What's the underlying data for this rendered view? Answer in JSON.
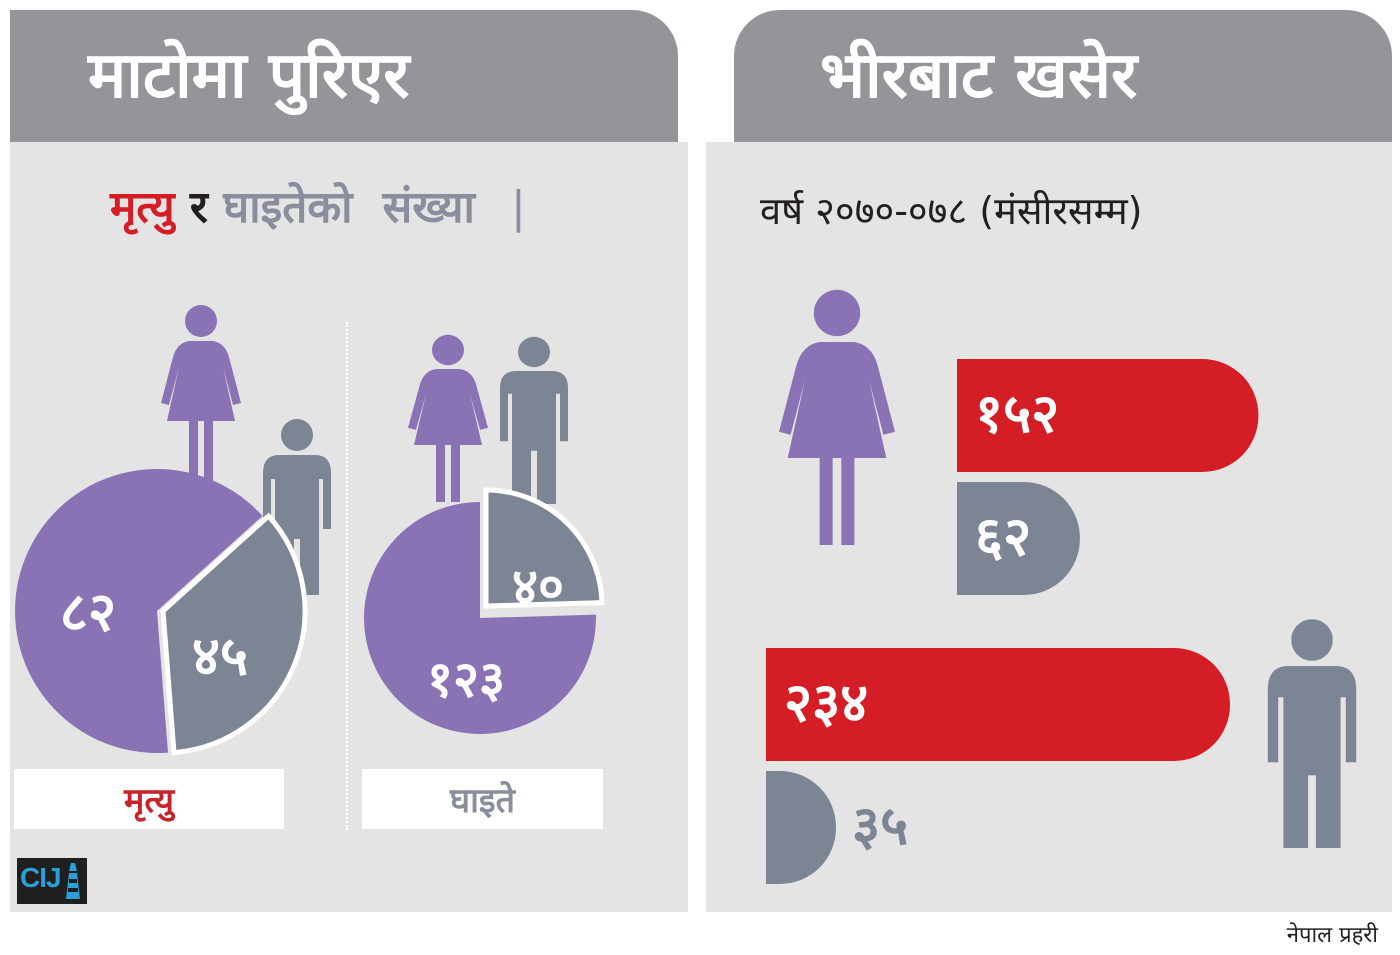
{
  "header": {
    "left_title": "माटोमा पुरिएर",
    "right_title": "भीरबाट खसेर"
  },
  "subtitle": {
    "deaths_word": "मृत्यु",
    "and_word": "र",
    "injured_word": "घाइतेको",
    "count_word": "संख्या",
    "separator": "|",
    "period": "वर्ष २०७०-०७८ (मंसीरसम्म)"
  },
  "labels": {
    "deaths": "मृत्यु",
    "injured": "घाइते"
  },
  "credit": "नेपाल प्रहरी",
  "logo_text": "CIJ",
  "colors": {
    "female": "#8a73b5",
    "male": "#7b8593",
    "deaths_bar": "#d51d25",
    "injured_bar": "#7b8593",
    "panel": "#e4e4e5",
    "tab": "#949599"
  },
  "chart_data": [
    {
      "type": "pie",
      "group": "landslide",
      "title": "मृत्यु",
      "slices": [
        {
          "category": "female",
          "value": 82,
          "label": "८२",
          "color": "#8a73b5"
        },
        {
          "category": "male",
          "value": 45,
          "label": "४५",
          "color": "#7b8593"
        }
      ]
    },
    {
      "type": "pie",
      "group": "landslide",
      "title": "घाइते",
      "slices": [
        {
          "category": "female",
          "value": 123,
          "label": "१२३",
          "color": "#8a73b5"
        },
        {
          "category": "male",
          "value": 40,
          "label": "४०",
          "color": "#7b8593"
        }
      ]
    },
    {
      "type": "bar",
      "group": "cliff-fall",
      "categories": [
        "female",
        "male"
      ],
      "series": [
        {
          "values": [
            152,
            234
          ],
          "labels": [
            "१५२",
            "२३४"
          ],
          "color": "#d51d25"
        },
        {
          "values": [
            62,
            35
          ],
          "labels": [
            "६२",
            "३५"
          ],
          "color": "#7b8593"
        }
      ]
    }
  ]
}
